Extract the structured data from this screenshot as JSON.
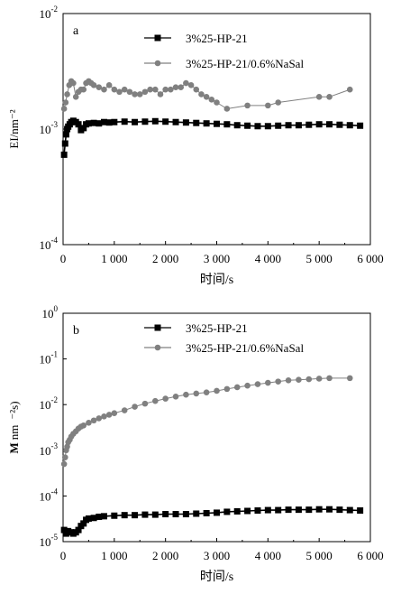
{
  "chart_data": [
    {
      "type": "line",
      "panel_label": "a",
      "ylabel": "EI/nm⁻²",
      "xlabel": "时间/s",
      "xlim": [
        0,
        6000
      ],
      "ylim": [
        0.0001,
        0.01
      ],
      "yscale": "log",
      "grid": false,
      "legend_position": "top-right",
      "x_ticks": [
        0,
        1000,
        2000,
        3000,
        4000,
        5000,
        6000
      ],
      "x_tick_labels": [
        "0",
        "1 000",
        "2 000",
        "3 000",
        "4 000",
        "5 000",
        "6 000"
      ],
      "y_ticks": [
        0.0001,
        0.001,
        0.01
      ],
      "y_tick_labels": [
        {
          "base": "10",
          "exp": "-4"
        },
        {
          "base": "10",
          "exp": "-3"
        },
        {
          "base": "10",
          "exp": "-2"
        }
      ],
      "series": [
        {
          "name": "3%25-HP-21",
          "marker": "square",
          "color": "#000000",
          "x": [
            20,
            40,
            60,
            80,
            100,
            130,
            160,
            200,
            250,
            300,
            350,
            400,
            450,
            500,
            600,
            700,
            800,
            900,
            1000,
            1200,
            1400,
            1600,
            1800,
            2000,
            2200,
            2400,
            2600,
            2800,
            3000,
            3200,
            3400,
            3600,
            3800,
            4000,
            4200,
            4400,
            4600,
            4800,
            5000,
            5200,
            5400,
            5600,
            5800
          ],
          "y": [
            0.0006,
            0.00075,
            0.0009,
            0.001,
            0.00105,
            0.0011,
            0.00115,
            0.00118,
            0.00115,
            0.0011,
            0.00098,
            0.00102,
            0.0011,
            0.00112,
            0.00113,
            0.00112,
            0.00115,
            0.00114,
            0.00115,
            0.00116,
            0.00115,
            0.00116,
            0.00117,
            0.00116,
            0.00115,
            0.00114,
            0.00113,
            0.00112,
            0.00111,
            0.0011,
            0.00108,
            0.00107,
            0.00106,
            0.00106,
            0.00107,
            0.00108,
            0.00108,
            0.00109,
            0.0011,
            0.0011,
            0.00109,
            0.00108,
            0.00107
          ]
        },
        {
          "name": "3%25-HP-21/0.6%NaSal",
          "marker": "circle",
          "color": "#808080",
          "x": [
            20,
            50,
            80,
            120,
            160,
            200,
            250,
            300,
            350,
            400,
            450,
            500,
            550,
            600,
            700,
            800,
            900,
            1000,
            1100,
            1200,
            1300,
            1400,
            1500,
            1600,
            1700,
            1800,
            1900,
            2000,
            2100,
            2200,
            2300,
            2400,
            2500,
            2600,
            2700,
            2800,
            2900,
            3000,
            3200,
            3600,
            4000,
            4200,
            5000,
            5200,
            5600
          ],
          "y": [
            0.0015,
            0.0017,
            0.002,
            0.0024,
            0.0026,
            0.0025,
            0.0019,
            0.0021,
            0.0022,
            0.0022,
            0.0025,
            0.0026,
            0.0025,
            0.0024,
            0.0023,
            0.0022,
            0.0024,
            0.0022,
            0.0021,
            0.0022,
            0.0021,
            0.002,
            0.002,
            0.0021,
            0.0022,
            0.0022,
            0.002,
            0.0022,
            0.0022,
            0.0023,
            0.0023,
            0.0025,
            0.0024,
            0.0022,
            0.002,
            0.0019,
            0.0018,
            0.0017,
            0.0015,
            0.0016,
            0.0016,
            0.0017,
            0.0019,
            0.0019,
            0.0022
          ]
        }
      ]
    },
    {
      "type": "line",
      "panel_label": "b",
      "ylabel_parts": [
        "M",
        "nm",
        "⁻²s)"
      ],
      "xlabel": "时间/s",
      "xlim": [
        0,
        6000
      ],
      "ylim": [
        1e-05,
        1
      ],
      "yscale": "log",
      "grid": false,
      "legend_position": "top-right",
      "x_ticks": [
        0,
        1000,
        2000,
        3000,
        4000,
        5000,
        6000
      ],
      "x_tick_labels": [
        "0",
        "1 000",
        "2 000",
        "3 000",
        "4 000",
        "5 000",
        "6 000"
      ],
      "y_ticks": [
        1e-05,
        0.0001,
        0.001,
        0.01,
        0.1,
        1
      ],
      "y_tick_labels": [
        {
          "base": "10",
          "exp": "-5"
        },
        {
          "base": "10",
          "exp": "-4"
        },
        {
          "base": "10",
          "exp": "-3"
        },
        {
          "base": "10",
          "exp": "-2"
        },
        {
          "base": "10",
          "exp": "-1"
        },
        {
          "base": "10",
          "exp": "0"
        }
      ],
      "series": [
        {
          "name": "3%25-HP-21",
          "marker": "square",
          "color": "#000000",
          "x": [
            20,
            60,
            100,
            150,
            200,
            250,
            300,
            350,
            400,
            450,
            500,
            600,
            700,
            800,
            1000,
            1200,
            1400,
            1600,
            1800,
            2000,
            2200,
            2400,
            2600,
            2800,
            3000,
            3200,
            3400,
            3600,
            3800,
            4000,
            4200,
            4400,
            4600,
            4800,
            5000,
            5200,
            5400,
            5600,
            5800
          ],
          "y": [
            1.8e-05,
            1.5e-05,
            1.7e-05,
            1.6e-05,
            1.5e-05,
            1.6e-05,
            1.8e-05,
            2.2e-05,
            2.5e-05,
            3e-05,
            3.2e-05,
            3.3e-05,
            3.5e-05,
            3.6e-05,
            3.7e-05,
            3.8e-05,
            3.8e-05,
            3.9e-05,
            3.9e-05,
            4e-05,
            4e-05,
            4e-05,
            4.1e-05,
            4.2e-05,
            4.3e-05,
            4.5e-05,
            4.6e-05,
            4.7e-05,
            4.8e-05,
            4.9e-05,
            4.9e-05,
            5e-05,
            5e-05,
            5e-05,
            5.1e-05,
            5.1e-05,
            5e-05,
            4.9e-05,
            4.8e-05
          ]
        },
        {
          "name": "3%25-HP-21/0.6%NaSal",
          "marker": "circle",
          "color": "#808080",
          "x": [
            20,
            40,
            60,
            80,
            100,
            130,
            160,
            200,
            250,
            300,
            350,
            400,
            500,
            600,
            700,
            800,
            900,
            1000,
            1200,
            1400,
            1600,
            1800,
            2000,
            2200,
            2400,
            2600,
            2800,
            3000,
            3200,
            3400,
            3600,
            3800,
            4000,
            4200,
            4400,
            4600,
            4800,
            5000,
            5200,
            5600
          ],
          "y": [
            0.0005,
            0.0007,
            0.001,
            0.0012,
            0.0015,
            0.0017,
            0.002,
            0.0023,
            0.0026,
            0.003,
            0.0033,
            0.0035,
            0.004,
            0.0045,
            0.005,
            0.0055,
            0.006,
            0.0065,
            0.0075,
            0.009,
            0.0105,
            0.012,
            0.0135,
            0.015,
            0.0165,
            0.0175,
            0.0185,
            0.02,
            0.022,
            0.024,
            0.026,
            0.028,
            0.03,
            0.032,
            0.034,
            0.035,
            0.036,
            0.037,
            0.038,
            0.038
          ]
        }
      ]
    }
  ]
}
